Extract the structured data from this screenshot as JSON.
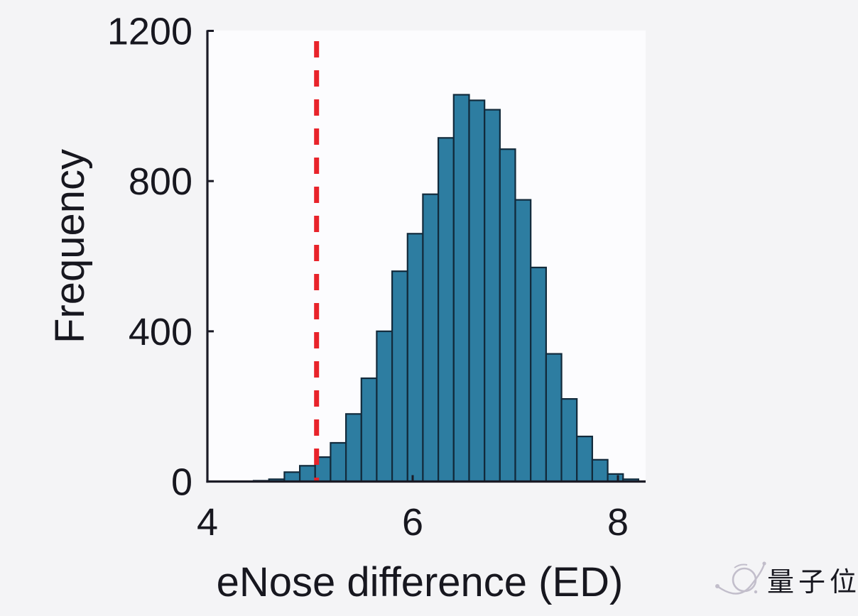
{
  "figure": {
    "background": "#f4f4f6",
    "plot_background": "#fcfcfe"
  },
  "chart_data": {
    "type": "bar",
    "subtype": "histogram",
    "title": "",
    "xlabel": "eNose difference (ED)",
    "ylabel": "Frequency",
    "x_ticks": [
      4,
      6,
      8
    ],
    "y_ticks": [
      0,
      400,
      800,
      1200
    ],
    "xlim": [
      4,
      8.27
    ],
    "ylim": [
      0,
      1200
    ],
    "grid": false,
    "legend_position": "none",
    "bins": {
      "start": 4.45,
      "bin_width": 0.15,
      "values": [
        2,
        6,
        25,
        42,
        65,
        103,
        180,
        275,
        400,
        560,
        660,
        765,
        915,
        1030,
        1015,
        990,
        885,
        750,
        570,
        340,
        220,
        120,
        58,
        20,
        6
      ]
    },
    "threshold_line": {
      "x": 5.05,
      "style": "dashed",
      "color": "#e8232a"
    },
    "colors": {
      "bar_fill": "#2d7da1",
      "bar_edge": "#122a3b",
      "axis": "#1b1b26",
      "text": "#17171f"
    }
  },
  "watermark": {
    "text": "量子位",
    "icon": "atom-icon",
    "color": "#8f8a9c",
    "icon_color": "#b2acbd"
  }
}
